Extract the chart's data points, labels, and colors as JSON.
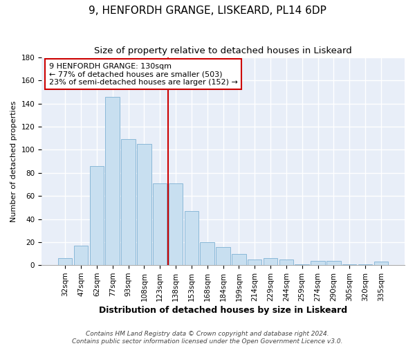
{
  "title": "9, HENFORDH GRANGE, LISKEARD, PL14 6DP",
  "subtitle": "Size of property relative to detached houses in Liskeard",
  "xlabel": "Distribution of detached houses by size in Liskeard",
  "ylabel": "Number of detached properties",
  "bar_labels": [
    "32sqm",
    "47sqm",
    "62sqm",
    "77sqm",
    "93sqm",
    "108sqm",
    "123sqm",
    "138sqm",
    "153sqm",
    "168sqm",
    "184sqm",
    "199sqm",
    "214sqm",
    "229sqm",
    "244sqm",
    "259sqm",
    "274sqm",
    "290sqm",
    "305sqm",
    "320sqm",
    "335sqm"
  ],
  "bar_values": [
    6,
    17,
    86,
    146,
    109,
    105,
    71,
    71,
    47,
    20,
    16,
    10,
    5,
    6,
    5,
    1,
    4,
    4,
    1,
    1,
    3
  ],
  "bar_color": "#c8dff0",
  "bar_edge_color": "#8ab8d8",
  "ylim": [
    0,
    180
  ],
  "yticks": [
    0,
    20,
    40,
    60,
    80,
    100,
    120,
    140,
    160,
    180
  ],
  "vline_color": "#cc0000",
  "annotation_title": "9 HENFORDH GRANGE: 130sqm",
  "annotation_line1": "← 77% of detached houses are smaller (503)",
  "annotation_line2": "23% of semi-detached houses are larger (152) →",
  "annotation_box_color": "#ffffff",
  "annotation_box_edge": "#cc0000",
  "footer1": "Contains HM Land Registry data © Crown copyright and database right 2024.",
  "footer2": "Contains public sector information licensed under the Open Government Licence v3.0.",
  "title_fontsize": 11,
  "subtitle_fontsize": 9.5,
  "xlabel_fontsize": 9,
  "ylabel_fontsize": 8,
  "tick_fontsize": 7.5,
  "annot_fontsize": 8,
  "footer_fontsize": 6.5,
  "bg_color": "#e8eef8",
  "grid_color": "#ffffff"
}
